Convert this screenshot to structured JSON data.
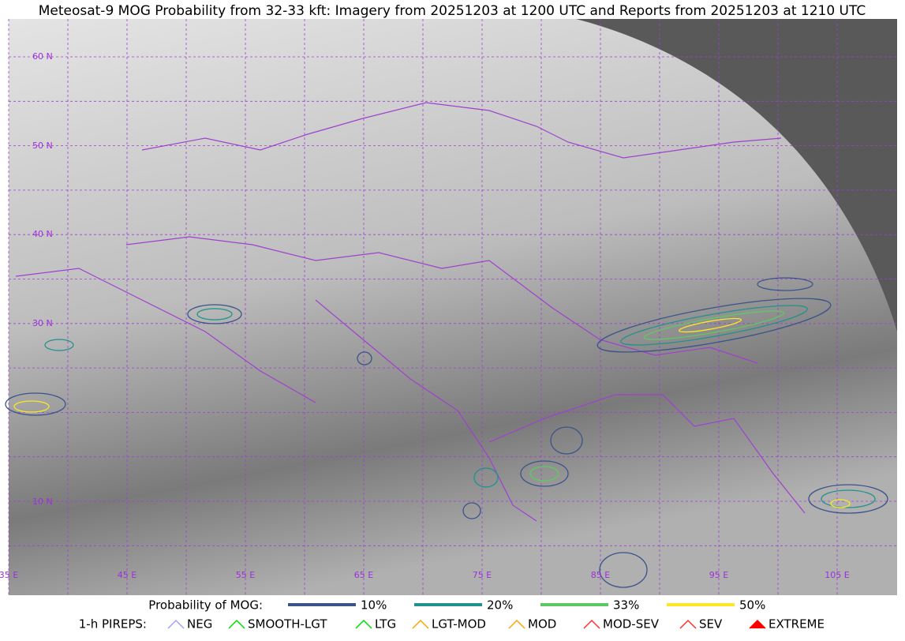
{
  "header": {
    "title": "Meteosat-9 MOG Probability from 32-33 kft: Imagery from 20251203 at 1200 UTC and Reports from 20251203 at 1210 UTC"
  },
  "map": {
    "lat_labels": [
      "60 N",
      "50 N",
      "40 N",
      "30 N",
      "10 N"
    ],
    "lon_labels": [
      "35 E",
      "45 E",
      "55 E",
      "65 E",
      "75 E",
      "85 E",
      "95 E",
      "105 E"
    ]
  },
  "legend": {
    "probability_title": "Probability of MOG:",
    "probability_levels": [
      "10%",
      "20%",
      "33%",
      "50%"
    ],
    "pireps_title": "1-h PIREPS:",
    "pireps": [
      "NEG",
      "SMOOTH-LGT",
      "LTG",
      "LGT-MOD",
      "MOD",
      "MOD-SEV",
      "SEV",
      "EXTREME"
    ]
  }
}
